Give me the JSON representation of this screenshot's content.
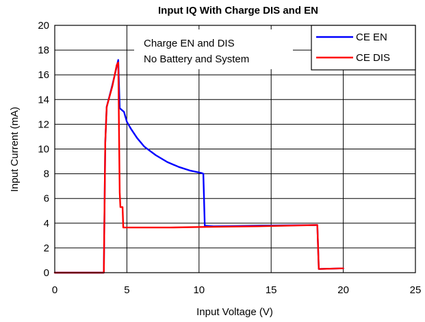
{
  "chart_data": {
    "type": "line",
    "title": "Input IQ With Charge DIS and EN",
    "xlabel": "Input Voltage (V)",
    "ylabel": "Input Current (mA)",
    "xlim": [
      0,
      25
    ],
    "ylim": [
      0,
      20
    ],
    "xticks": [
      0,
      5,
      10,
      15,
      20,
      25
    ],
    "yticks": [
      0,
      2,
      4,
      6,
      8,
      10,
      12,
      14,
      16,
      18,
      20
    ],
    "xtick_labels": [
      "0",
      "5",
      "10",
      "15",
      "20",
      "25"
    ],
    "ytick_labels": [
      "0",
      "2",
      "4",
      "6",
      "8",
      "10",
      "12",
      "14",
      "16",
      "18",
      "20"
    ],
    "grid": true,
    "legend_position": "top-right",
    "annotation_lines": [
      "Charge EN and DIS",
      "No Battery and System"
    ],
    "series": [
      {
        "name": "CE EN",
        "color": "#0000ff",
        "x": [
          0,
          3.4,
          3.5,
          3.6,
          4.0,
          4.4,
          4.5,
          4.8,
          5.0,
          5.3,
          5.7,
          6.2,
          7.0,
          7.8,
          8.6,
          9.4,
          10.2,
          10.3,
          10.4,
          11,
          14,
          18.1,
          18.2,
          18.3,
          18.4,
          20
        ],
        "y": [
          0,
          0,
          10.5,
          13.4,
          15.2,
          17.2,
          13.3,
          13.0,
          12.2,
          11.6,
          10.9,
          10.2,
          9.5,
          8.95,
          8.55,
          8.25,
          8.05,
          8.0,
          3.8,
          3.75,
          3.8,
          3.85,
          3.85,
          0.3,
          0.3,
          0.35
        ]
      },
      {
        "name": "CE DIS",
        "color": "#ff0000",
        "x": [
          0,
          3.4,
          3.5,
          3.6,
          4.0,
          4.3,
          4.4,
          4.5,
          4.55,
          4.7,
          4.75,
          4.8,
          5.0,
          8,
          10.5,
          14,
          18.1,
          18.2,
          18.3,
          18.4,
          20
        ],
        "y": [
          0,
          0,
          10.5,
          13.4,
          15.1,
          16.8,
          17.0,
          6.5,
          5.3,
          5.3,
          3.65,
          3.65,
          3.65,
          3.65,
          3.7,
          3.75,
          3.85,
          3.85,
          0.3,
          0.3,
          0.35
        ]
      }
    ]
  }
}
